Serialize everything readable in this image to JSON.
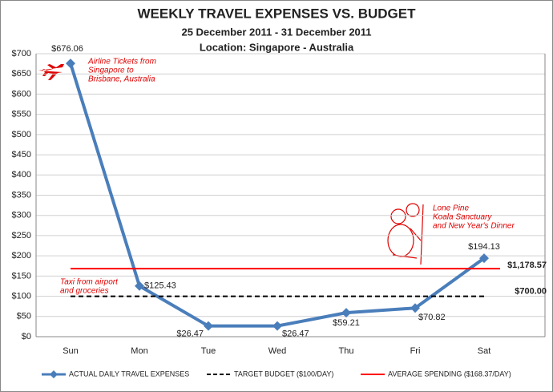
{
  "chart_data": {
    "type": "line",
    "title": "WEEKLY TRAVEL EXPENSES VS. BUDGET",
    "subtitle": "25 December 2011 - 31 December 2011",
    "location": "Location: Singapore - Australia",
    "categories": [
      "Sun",
      "Mon",
      "Tue",
      "Wed",
      "Thu",
      "Fri",
      "Sat"
    ],
    "series": [
      {
        "name": "ACTUAL DAILY TRAVEL EXPENSES",
        "color": "#4a7ebb",
        "style": "solid",
        "marker": "diamond",
        "values": [
          676.06,
          125.43,
          26.47,
          26.47,
          59.21,
          70.82,
          194.13
        ],
        "value_labels": [
          "$676.06",
          "$125.43",
          "$26.47",
          "$26.47",
          "$59.21",
          "$70.82",
          "$194.13"
        ]
      },
      {
        "name": "TARGET BUDGET ($100/DAY)",
        "color": "#000000",
        "style": "dashed",
        "values": [
          100,
          100,
          100,
          100,
          100,
          100,
          100
        ]
      },
      {
        "name": "AVERAGE SPENDING ($168.37/DAY)",
        "color": "#ff0000",
        "style": "solid",
        "values": [
          168.37,
          168.37,
          168.37,
          168.37,
          168.37,
          168.37,
          168.37
        ]
      }
    ],
    "totals": [
      {
        "text": "$1,178.57",
        "color": "#ff0000"
      },
      {
        "text": "$700.00",
        "color": "#000000"
      }
    ],
    "annotations": [
      {
        "lines": [
          "Airline Tickets from",
          "Singapore to",
          "Brisbane, Australia"
        ]
      },
      {
        "lines": [
          "Taxi from airport",
          "and groceries"
        ]
      },
      {
        "lines": [
          "Lone Pine",
          "Koala Sanctuary",
          "and New Year's Dinner"
        ]
      }
    ],
    "ylim": [
      0,
      700
    ],
    "yticks": [
      {
        "value": 0,
        "label": "$0"
      },
      {
        "value": 50,
        "label": "$50"
      },
      {
        "value": 100,
        "label": "$100"
      },
      {
        "value": 150,
        "label": "$150"
      },
      {
        "value": 200,
        "label": "$200"
      },
      {
        "value": 250,
        "label": "$250"
      },
      {
        "value": 300,
        "label": "$300"
      },
      {
        "value": 350,
        "label": "$350"
      },
      {
        "value": 400,
        "label": "$400"
      },
      {
        "value": 450,
        "label": "$450"
      },
      {
        "value": 500,
        "label": "$500"
      },
      {
        "value": 550,
        "label": "$550"
      },
      {
        "value": 600,
        "label": "$600"
      },
      {
        "value": 650,
        "label": "$650"
      },
      {
        "value": 700,
        "label": "$700"
      }
    ],
    "grid": true
  }
}
